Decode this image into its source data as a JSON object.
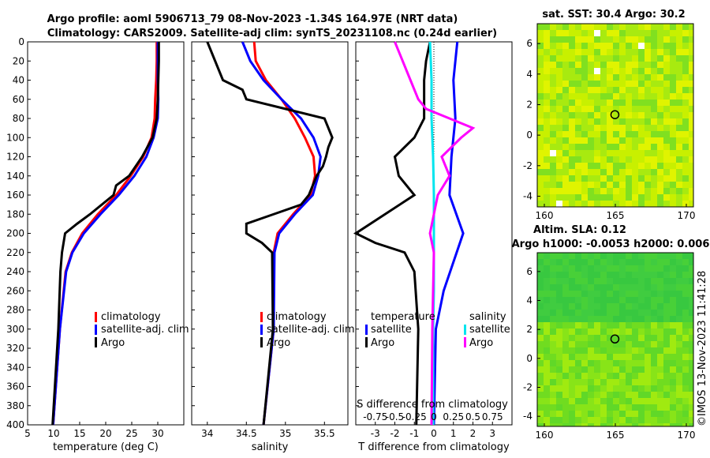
{
  "header": {
    "line1": "Argo profile: aoml 5906713_79 08-Nov-2023 -1.34S 164.97E (NRT data)",
    "line2": "Climatology: CARS2009. Satellite-adj clim: synTS_20231108.nc (0.24d earlier)"
  },
  "colors": {
    "climatology": "#ff0000",
    "satellite": "#0000ff",
    "argo": "#000000",
    "sat_t": "#00e5ee",
    "argo_s": "#ff00ff"
  },
  "legends": {
    "temp": [
      "climatology",
      "satellite-adj. clim",
      "Argo"
    ],
    "sal": [
      "climatology",
      "satellite-adj. clim",
      "Argo"
    ],
    "diff_t_head": "temperature",
    "diff_s_head": "salinity",
    "diff_t": [
      "satellite",
      "Argo"
    ],
    "diff_s": [
      "satellite",
      "Argo"
    ]
  },
  "maps": {
    "sst_title": "sat. SST: 30.4 Argo: 30.2",
    "sla_title1": "Altim. SLA: 0.12",
    "sla_title2": "Argo h1000: -0.0053 h2000: 0.006",
    "xticks": [
      "160",
      "165",
      "170"
    ],
    "yticks": [
      "6",
      "4",
      "2",
      "0",
      "-2",
      "-4"
    ],
    "credit": "©IMOS 13-Nov-2023 11:41:28"
  },
  "chart_data": [
    {
      "type": "line",
      "name": "temperature-profile",
      "xlabel": "temperature (deg C)",
      "ylabel": "depth",
      "xlim": [
        5,
        35
      ],
      "ylim": [
        400,
        0
      ],
      "xticks": [
        "5",
        "10",
        "15",
        "20",
        "25",
        "30"
      ],
      "yticks": [
        "0",
        "20",
        "40",
        "60",
        "80",
        "100",
        "120",
        "140",
        "160",
        "180",
        "200",
        "220",
        "240",
        "260",
        "280",
        "300",
        "320",
        "340",
        "360",
        "380",
        "400"
      ],
      "series": [
        {
          "name": "climatology",
          "depth": [
            0,
            20,
            40,
            60,
            80,
            100,
            120,
            140,
            160,
            180,
            200,
            220,
            240,
            300,
            400
          ],
          "values": [
            29.8,
            29.8,
            29.7,
            29.5,
            29.4,
            28.8,
            27.2,
            24.8,
            22.0,
            18.5,
            15.5,
            13.5,
            12.3,
            11.2,
            9.9
          ]
        },
        {
          "name": "satellite-adj. clim",
          "depth": [
            0,
            20,
            40,
            60,
            80,
            100,
            120,
            140,
            160,
            180,
            200,
            220,
            240,
            300,
            400
          ],
          "values": [
            30.0,
            30.0,
            30.0,
            30.1,
            30.0,
            29.2,
            27.8,
            25.5,
            22.5,
            19.0,
            15.8,
            13.6,
            12.4,
            11.2,
            9.9
          ]
        },
        {
          "name": "Argo",
          "depth": [
            0,
            20,
            40,
            60,
            80,
            100,
            120,
            140,
            150,
            160,
            180,
            190,
            200,
            220,
            240,
            300,
            400
          ],
          "values": [
            30.2,
            30.2,
            30.1,
            30.0,
            29.8,
            29.0,
            27.0,
            24.5,
            22.0,
            21.5,
            17.0,
            14.5,
            12.2,
            11.6,
            11.3,
            10.9,
            9.8
          ]
        }
      ]
    },
    {
      "type": "line",
      "name": "salinity-profile",
      "xlabel": "salinity",
      "ylabel": "depth",
      "xlim": [
        33.8,
        35.8
      ],
      "ylim": [
        400,
        0
      ],
      "xticks": [
        "34",
        "34.5",
        "35",
        "35.5"
      ],
      "series": [
        {
          "name": "climatology",
          "depth": [
            0,
            20,
            40,
            60,
            80,
            100,
            120,
            140,
            160,
            180,
            200,
            220,
            300,
            400
          ],
          "values": [
            34.6,
            34.62,
            34.75,
            34.95,
            35.12,
            35.25,
            35.36,
            35.38,
            35.32,
            35.1,
            34.9,
            34.85,
            34.85,
            34.72
          ]
        },
        {
          "name": "satellite-adj. clim",
          "depth": [
            0,
            20,
            40,
            60,
            80,
            100,
            120,
            140,
            160,
            180,
            200,
            220,
            300,
            400
          ],
          "values": [
            34.45,
            34.55,
            34.72,
            34.95,
            35.2,
            35.36,
            35.45,
            35.42,
            35.35,
            35.12,
            34.92,
            34.86,
            34.85,
            34.72
          ]
        },
        {
          "name": "Argo",
          "depth": [
            0,
            10,
            20,
            40,
            50,
            60,
            70,
            80,
            90,
            100,
            110,
            120,
            130,
            140,
            160,
            170,
            180,
            190,
            200,
            210,
            220,
            300,
            400
          ],
          "values": [
            34.0,
            34.05,
            34.1,
            34.2,
            34.45,
            34.5,
            35.0,
            35.5,
            35.55,
            35.6,
            35.55,
            35.52,
            35.48,
            35.4,
            35.3,
            35.2,
            34.85,
            34.5,
            34.5,
            34.7,
            34.83,
            34.84,
            34.72
          ]
        }
      ]
    },
    {
      "type": "line",
      "name": "difference-profile",
      "xlabel": "T difference from climatology",
      "x2label": "S difference from climatology",
      "xlim": [
        -4,
        4
      ],
      "ylim": [
        400,
        0
      ],
      "xticks": [
        "-3",
        "-2",
        "-1",
        "0",
        "1",
        "2",
        "3"
      ],
      "x2ticks": [
        "-0.75",
        "-0.5",
        "-0.25",
        "0",
        "0.25",
        "0.5",
        "0.75"
      ],
      "series": [
        {
          "name": "T satellite",
          "depth": [
            0,
            40,
            80,
            120,
            160,
            200,
            260,
            300,
            400
          ],
          "values": [
            1.2,
            1.0,
            1.1,
            0.9,
            0.8,
            1.5,
            0.5,
            0.1,
            0.0
          ]
        },
        {
          "name": "T Argo",
          "depth": [
            0,
            20,
            40,
            60,
            80,
            100,
            120,
            140,
            160,
            180,
            200,
            210,
            220,
            240,
            300,
            400
          ],
          "values": [
            -0.2,
            -0.4,
            -0.5,
            -0.5,
            -0.5,
            -1.0,
            -2.0,
            -1.8,
            -1.0,
            -2.5,
            -4.0,
            -3.0,
            -1.5,
            -1.0,
            -0.8,
            -0.9
          ]
        },
        {
          "name": "S satellite",
          "depth": [
            0,
            40,
            80,
            120,
            160,
            200,
            260,
            300,
            400
          ],
          "values": [
            -0.05,
            -0.03,
            -0.03,
            -0.01,
            0.0,
            0.0,
            0.0,
            -0.01,
            -0.01
          ]
        },
        {
          "name": "S Argo",
          "depth": [
            0,
            20,
            40,
            60,
            70,
            80,
            90,
            100,
            120,
            140,
            160,
            180,
            200,
            220,
            300,
            400
          ],
          "values": [
            -0.5,
            -0.4,
            -0.3,
            -0.2,
            -0.1,
            0.2,
            0.5,
            0.35,
            0.1,
            0.2,
            0.05,
            0.0,
            -0.05,
            0.0,
            -0.02,
            -0.03
          ]
        }
      ]
    }
  ]
}
